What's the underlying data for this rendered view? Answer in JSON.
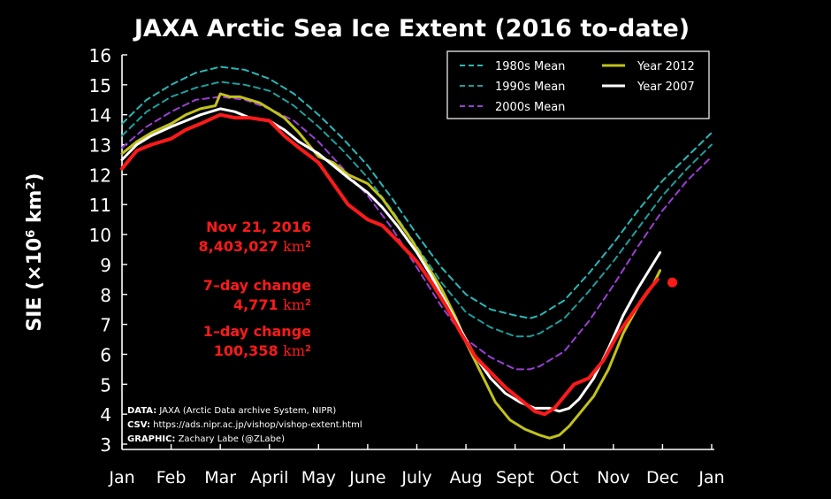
{
  "chart_data": {
    "type": "line",
    "title": "JAXA Arctic Sea Ice Extent (2016 to-date)",
    "xlabel": "",
    "ylabel_main": "SIE (×10",
    "ylabel_sup1": "6",
    "ylabel_mid": " km",
    "ylabel_sup2": "2",
    "ylabel_end": ")",
    "xlim": [
      0,
      12
    ],
    "ylim": [
      3,
      16
    ],
    "x_tick_labels": [
      "Jan",
      "Feb",
      "Mar",
      "April",
      "May",
      "June",
      "July",
      "Aug",
      "Sept",
      "Oct",
      "Nov",
      "Dec",
      "Jan"
    ],
    "y_ticks": [
      3,
      4,
      5,
      6,
      7,
      8,
      9,
      10,
      11,
      12,
      13,
      14,
      15,
      16
    ],
    "legend_position": "top-right",
    "series": [
      {
        "name": "1980s Mean",
        "color": "#29b8b8",
        "style": "dashed",
        "x": [
          0,
          0.5,
          1,
          1.5,
          2,
          2.5,
          3,
          3.5,
          4,
          4.5,
          5,
          5.5,
          6,
          6.5,
          7,
          7.5,
          8,
          8.3,
          8.5,
          9,
          9.5,
          10,
          10.5,
          11,
          11.5,
          12
        ],
        "y": [
          13.7,
          14.5,
          15.0,
          15.4,
          15.6,
          15.5,
          15.2,
          14.7,
          14.0,
          13.2,
          12.3,
          11.2,
          10.0,
          8.9,
          8.0,
          7.5,
          7.3,
          7.2,
          7.3,
          7.8,
          8.7,
          9.7,
          10.8,
          11.8,
          12.6,
          13.4
        ]
      },
      {
        "name": "1990s Mean",
        "color": "#1f9e9e",
        "style": "dashed",
        "x": [
          0,
          0.5,
          1,
          1.5,
          2,
          2.5,
          3,
          3.5,
          4,
          4.5,
          5,
          5.5,
          6,
          6.5,
          7,
          7.5,
          8,
          8.3,
          8.5,
          9,
          9.5,
          10,
          10.5,
          11,
          11.5,
          12
        ],
        "y": [
          13.3,
          14.1,
          14.6,
          14.9,
          15.1,
          15.0,
          14.8,
          14.3,
          13.6,
          12.8,
          11.9,
          10.8,
          9.6,
          8.4,
          7.4,
          6.9,
          6.6,
          6.6,
          6.7,
          7.2,
          8.1,
          9.1,
          10.2,
          11.3,
          12.2,
          13.0
        ]
      },
      {
        "name": "2000s Mean",
        "color": "#9b3fd6",
        "style": "dashed",
        "x": [
          0,
          0.5,
          1,
          1.5,
          2,
          2.5,
          3,
          3.5,
          4,
          4.5,
          5,
          5.5,
          6,
          6.5,
          7,
          7.5,
          8,
          8.3,
          8.5,
          9,
          9.5,
          10,
          10.5,
          11,
          11.5,
          12
        ],
        "y": [
          12.9,
          13.6,
          14.1,
          14.5,
          14.6,
          14.5,
          14.2,
          13.8,
          13.1,
          12.2,
          11.3,
          10.2,
          8.9,
          7.6,
          6.5,
          5.9,
          5.5,
          5.5,
          5.6,
          6.1,
          7.1,
          8.3,
          9.6,
          10.8,
          11.8,
          12.6
        ]
      },
      {
        "name": "Year 2012",
        "color": "#c2c21a",
        "style": "solid",
        "x": [
          0,
          0.3,
          0.6,
          1,
          1.3,
          1.6,
          1.9,
          2,
          2.2,
          2.4,
          2.6,
          2.8,
          3,
          3.3,
          3.6,
          4,
          4.3,
          4.6,
          5,
          5.3,
          5.6,
          5.9,
          6.2,
          6.5,
          6.8,
          7,
          7.3,
          7.6,
          7.9,
          8.2,
          8.5,
          8.7,
          8.9,
          9.1,
          9.3,
          9.6,
          9.9,
          10.2,
          10.5,
          10.8,
          10.95
        ],
        "y": [
          12.7,
          13.1,
          13.4,
          13.7,
          14.0,
          14.2,
          14.3,
          14.7,
          14.6,
          14.6,
          14.5,
          14.4,
          14.2,
          13.9,
          13.4,
          12.6,
          12.4,
          12.0,
          11.7,
          11.2,
          10.5,
          9.8,
          9.0,
          8.2,
          7.2,
          6.4,
          5.4,
          4.4,
          3.8,
          3.5,
          3.3,
          3.2,
          3.3,
          3.6,
          4.0,
          4.6,
          5.5,
          6.7,
          7.6,
          8.3,
          8.8
        ]
      },
      {
        "name": "Year 2007",
        "color": "#ffffff",
        "style": "solid",
        "x": [
          0,
          0.3,
          0.6,
          1,
          1.3,
          1.6,
          2,
          2.3,
          2.6,
          3,
          3.3,
          3.6,
          4,
          4.3,
          4.6,
          5,
          5.3,
          5.6,
          6,
          6.3,
          6.6,
          6.9,
          7.2,
          7.5,
          7.8,
          8.1,
          8.4,
          8.7,
          8.9,
          9.1,
          9.3,
          9.6,
          9.9,
          10.2,
          10.5,
          10.8,
          10.95
        ],
        "y": [
          12.5,
          13.0,
          13.3,
          13.6,
          13.8,
          14.0,
          14.2,
          14.1,
          13.9,
          13.8,
          13.5,
          13.1,
          12.7,
          12.3,
          11.9,
          11.4,
          10.9,
          10.3,
          9.4,
          8.6,
          7.7,
          6.8,
          5.9,
          5.2,
          4.7,
          4.4,
          4.2,
          4.2,
          4.1,
          4.2,
          4.5,
          5.2,
          6.2,
          7.3,
          8.2,
          9.0,
          9.4
        ]
      },
      {
        "name": "Year 2016",
        "color": "#ff1a1a",
        "style": "solid",
        "x": [
          0,
          0.3,
          0.6,
          1,
          1.3,
          1.6,
          2,
          2.3,
          2.6,
          3,
          3.3,
          3.6,
          4,
          4.3,
          4.6,
          5,
          5.3,
          5.6,
          6,
          6.3,
          6.6,
          6.9,
          7.2,
          7.5,
          7.8,
          8.1,
          8.4,
          8.6,
          8.8,
          9,
          9.2,
          9.5,
          9.8,
          10.1,
          10.4,
          10.7,
          10.9
        ],
        "y": [
          12.2,
          12.8,
          13.0,
          13.2,
          13.5,
          13.7,
          14.0,
          13.9,
          13.9,
          13.8,
          13.3,
          12.9,
          12.4,
          11.7,
          11.0,
          10.5,
          10.3,
          9.8,
          9.1,
          8.4,
          7.6,
          6.7,
          5.9,
          5.4,
          4.9,
          4.5,
          4.1,
          4.0,
          4.2,
          4.6,
          5.0,
          5.2,
          5.8,
          6.7,
          7.4,
          8.1,
          8.5
        ]
      }
    ],
    "current_point": {
      "x": 11.2,
      "y": 8.4,
      "color": "#ff1a1a"
    },
    "legend": [
      {
        "label": "1980s Mean",
        "color": "#29b8b8",
        "style": "dashed"
      },
      {
        "label": "Year 2012",
        "color": "#c2c21a",
        "style": "solid"
      },
      {
        "label": "1990s Mean",
        "color": "#1f9e9e",
        "style": "dashed"
      },
      {
        "label": "Year 2007",
        "color": "#ffffff",
        "style": "solid"
      },
      {
        "label": "2000s Mean",
        "color": "#9b3fd6",
        "style": "dashed"
      }
    ],
    "annotations": {
      "date": "Nov 21, 2016",
      "extent_value": "8,403,027 ",
      "extent_unit": "km",
      "extent_sup": "2",
      "change7_label": "7–day change",
      "change7_value": "4,771 ",
      "change7_unit": "km",
      "change7_sup": "2",
      "change1_label": "1–day change",
      "change1_value": "100,358 ",
      "change1_unit": "km",
      "change1_sup": "2",
      "color": "#ff1a1a"
    },
    "credits": [
      {
        "label": "DATA:",
        "text": " JAXA (Arctic Data archive System, NIPR)"
      },
      {
        "label": "CSV:",
        "text": " https://ads.nipr.ac.jp/vishop/vishop-extent.html"
      },
      {
        "label": "GRAPHIC:",
        "text": " Zachary Labe (@ZLabe)"
      }
    ]
  }
}
